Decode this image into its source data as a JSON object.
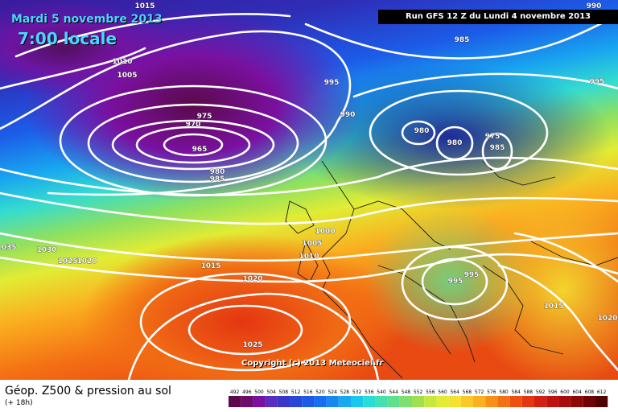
{
  "header": {
    "date": "Mardi 5 novembre 2013",
    "time": "7:00 locale",
    "run": "Run GFS 12 Z du Lundi 4 novembre 2013"
  },
  "copyright": "Copyright (c) 2013 Meteociel.fr",
  "footer": {
    "product": "Géop. Z500 & pression au sol",
    "lead": "(+ 18h)"
  },
  "scale": {
    "labels": [
      "492",
      "496",
      "500",
      "504",
      "508",
      "512",
      "516",
      "520",
      "524",
      "528",
      "532",
      "536",
      "540",
      "544",
      "548",
      "552",
      "556",
      "560",
      "564",
      "568",
      "572",
      "576",
      "580",
      "584",
      "588",
      "592",
      "596",
      "600",
      "604",
      "608",
      "612"
    ],
    "colors": [
      "#5a0a4a",
      "#6e0b6b",
      "#7a10a0",
      "#5a2cbf",
      "#3838c8",
      "#2846d8",
      "#1e5ae8",
      "#186ef0",
      "#1688f0",
      "#18a8f0",
      "#1ac8ee",
      "#28ddd8",
      "#44e0b0",
      "#5ee08c",
      "#7ee070",
      "#a0e050",
      "#c4e83c",
      "#e2ec34",
      "#f4e230",
      "#fac828",
      "#fab020",
      "#f89018",
      "#f47014",
      "#ee5012",
      "#e43612",
      "#d42012",
      "#c01010",
      "#a80c0c",
      "#8e0808",
      "#700404",
      "#500202"
    ]
  },
  "pressure_labels": [
    "1015",
    "1010",
    "1005",
    "975",
    "970",
    "965",
    "980",
    "985",
    "995",
    "990",
    "985",
    "980",
    "980",
    "975",
    "985",
    "995",
    "990",
    "1000",
    "1005",
    "1010",
    "1015",
    "1020",
    "1025",
    "1030",
    "1035",
    "1025",
    "1020",
    "995",
    "995",
    "1015",
    "1020"
  ]
}
